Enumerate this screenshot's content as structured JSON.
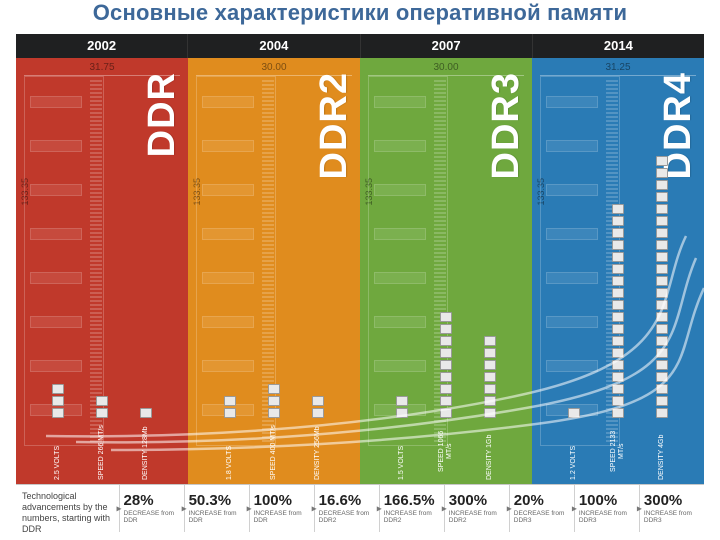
{
  "title": "Основные характеристики оперативной памяти",
  "title_color": "#3d6899",
  "chart": {
    "background": "#ffffff",
    "module_opacity": 0.35,
    "columns": [
      {
        "year": "2002",
        "gen": "DDR",
        "color": "#c0392b",
        "width_mm": "31.75",
        "height_mm": "133.35",
        "bars": [
          {
            "label": "2.5 VOLTS",
            "segments": 3
          },
          {
            "label": "SPEED 266 MT/s",
            "segments": 2
          },
          {
            "label": "DENSITY 128Mb",
            "segments": 1
          }
        ]
      },
      {
        "year": "2004",
        "gen": "DDR2",
        "color": "#e08c1e",
        "width_mm": "30.00",
        "height_mm": "133.35",
        "bars": [
          {
            "label": "1.8 VOLTS",
            "segments": 2
          },
          {
            "label": "SPEED 400 MT/s",
            "segments": 3
          },
          {
            "label": "DENSITY 256Mb",
            "segments": 2
          }
        ]
      },
      {
        "year": "2007",
        "gen": "DDR3",
        "color": "#6fa83e",
        "width_mm": "30.00",
        "height_mm": "133.35",
        "bars": [
          {
            "label": "1.5 VOLTS",
            "segments": 2
          },
          {
            "label": "SPEED 1066 MT/s",
            "segments": 9
          },
          {
            "label": "DENSITY 1Gb",
            "segments": 7
          }
        ]
      },
      {
        "year": "2014",
        "gen": "DDR4",
        "color": "#2a7bb5",
        "width_mm": "31.25",
        "height_mm": "133.35",
        "bars": [
          {
            "label": "1.2 VOLTS",
            "segments": 1
          },
          {
            "label": "SPEED 2133 MT/s",
            "segments": 18
          },
          {
            "label": "DENSITY 4Gb",
            "segments": 22
          }
        ]
      }
    ],
    "curves": {
      "stroke": "#ffffff",
      "opacity": 0.55,
      "width": 2.5,
      "paths": [
        "M30,378 C150,380 330,374 500,338 S640,240 670,178",
        "M60,384 C180,386 340,380 510,350 S650,270 680,200",
        "M95,392 C200,392 350,388 520,366 S655,300 688,230"
      ]
    }
  },
  "footer": {
    "lead": "Technological advancements by the numbers, starting with DDR",
    "stats": [
      {
        "big": "28%",
        "sub": "DECREASE from DDR"
      },
      {
        "big": "50.3%",
        "sub": "INCREASE from DDR"
      },
      {
        "big": "100%",
        "sub": "INCREASE from DDR"
      },
      {
        "big": "16.6%",
        "sub": "DECREASE from DDR2"
      },
      {
        "big": "166.5%",
        "sub": "INCREASE from DDR2"
      },
      {
        "big": "300%",
        "sub": "INCREASE from DDR2"
      },
      {
        "big": "20%",
        "sub": "DECREASE from DDR3"
      },
      {
        "big": "100%",
        "sub": "INCREASE from DDR3"
      },
      {
        "big": "300%",
        "sub": "INCREASE from DDR3"
      }
    ]
  }
}
